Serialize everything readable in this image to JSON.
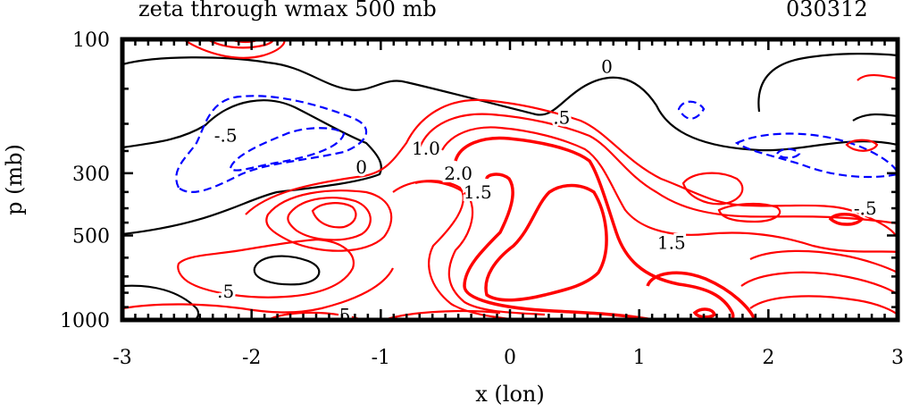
{
  "chart_data": {
    "type": "contour",
    "title": "zeta through wmax 500 mb",
    "date_label": "030312",
    "xlabel": "x (lon)",
    "ylabel": "p (mb)",
    "xlim": [
      -3,
      3
    ],
    "ylim": [
      1000,
      100
    ],
    "y_scale": "log",
    "x_ticks": [
      "-3",
      "-2",
      "-1",
      "0",
      "1",
      "2",
      "3"
    ],
    "x_tick_values": [
      -3,
      -2,
      -1,
      0,
      1,
      2,
      3
    ],
    "y_ticks": [
      "100",
      "300",
      "500",
      "1000"
    ],
    "y_tick_values": [
      100,
      300,
      500,
      1000
    ],
    "colors": {
      "positive": "#ff0000",
      "zero": "#000000",
      "negative": "#0000ff",
      "frame": "#000000"
    },
    "contour_labels": [
      {
        "text": "0",
        "x": 0.75,
        "p": 125
      },
      {
        "text": "-.5",
        "x": -2.2,
        "p": 220
      },
      {
        "text": ".5",
        "x": 0.4,
        "p": 190
      },
      {
        "text": "1.0",
        "x": -0.65,
        "p": 245
      },
      {
        "text": "0",
        "x": -1.15,
        "p": 285
      },
      {
        "text": "2.0",
        "x": -0.4,
        "p": 300
      },
      {
        "text": "1.5",
        "x": -0.25,
        "p": 350
      },
      {
        "text": "1.5",
        "x": 1.25,
        "p": 530
      },
      {
        "text": "-.5",
        "x": 2.75,
        "p": 400
      },
      {
        "text": ".5",
        "x": -2.2,
        "p": 790
      },
      {
        "text": ".5",
        "x": -1.3,
        "p": 960
      }
    ]
  }
}
